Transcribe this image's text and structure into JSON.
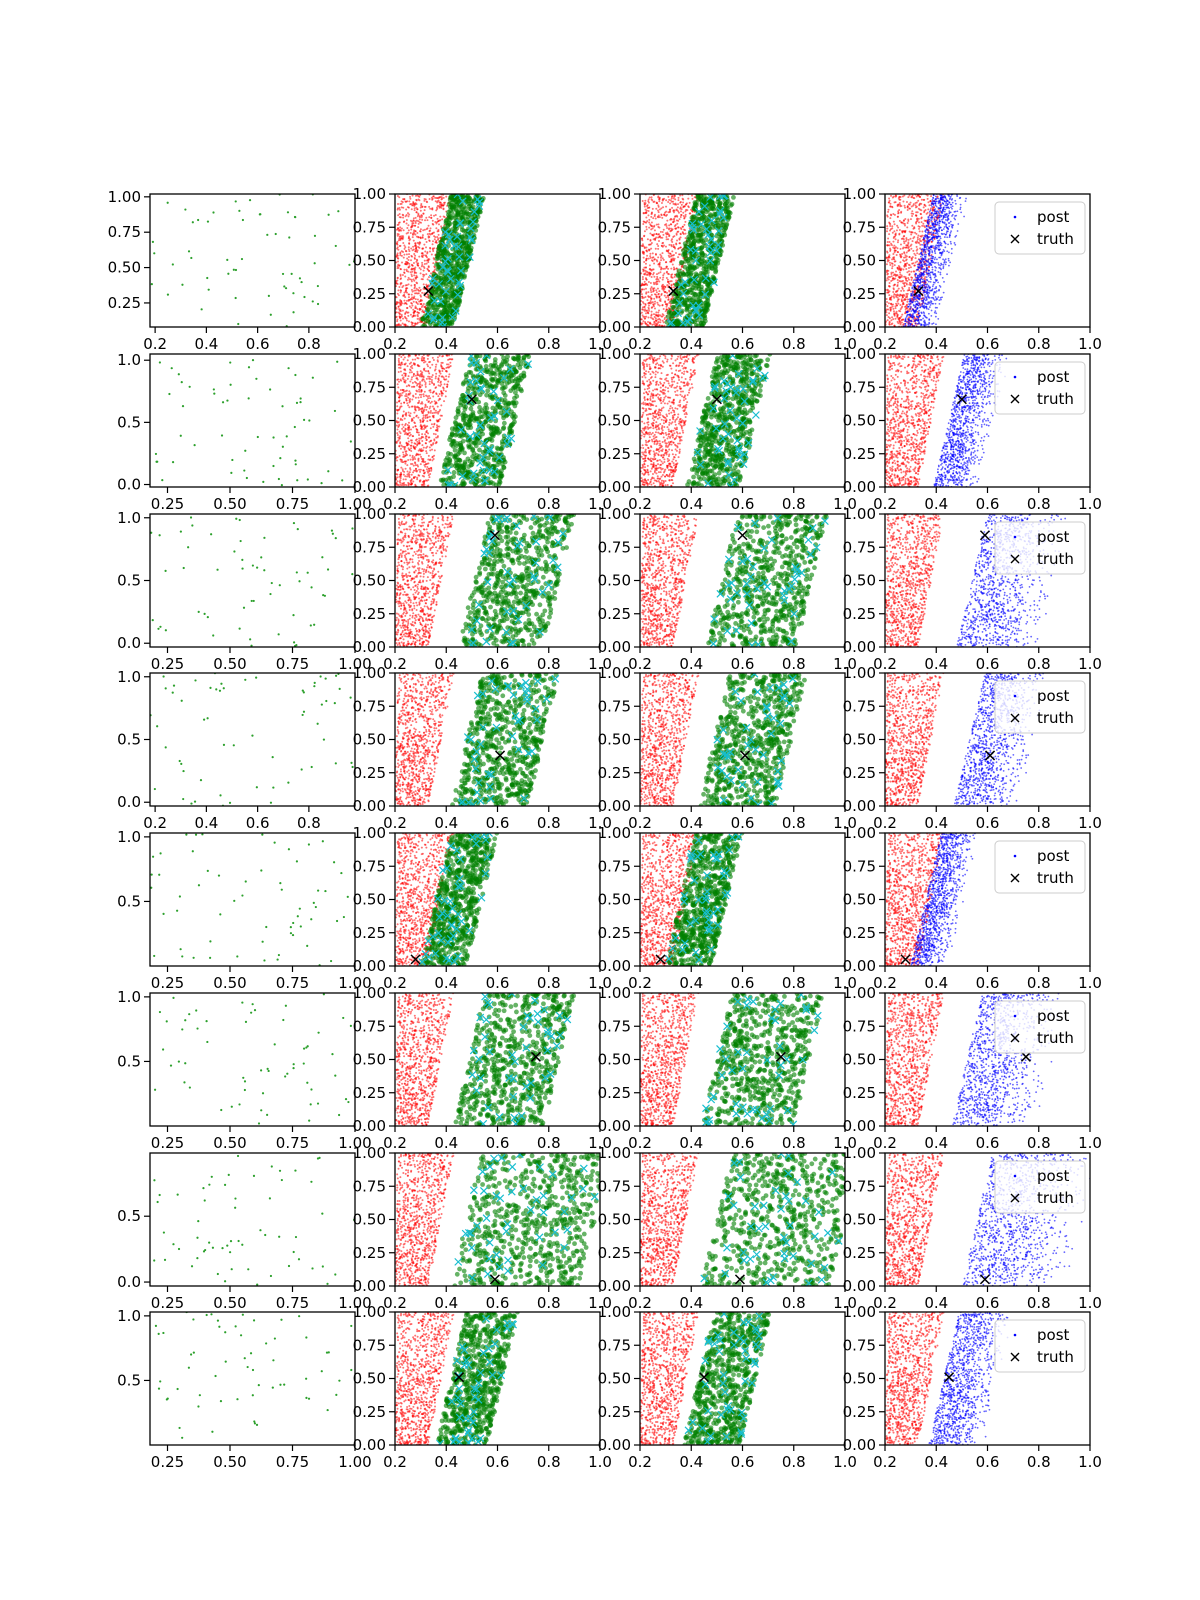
{
  "figure": {
    "legend": {
      "post_label": "post",
      "truth_label": "truth",
      "placement": "upper-right"
    },
    "colors": {
      "samples_green": "#2ca02c",
      "prior_red": "#ff0000",
      "cloud_green": "#008000",
      "accepted_cyan": "#17becf",
      "posterior_blue": "#0000ff",
      "truth_black": "#000000"
    }
  },
  "chart_data": [
    {
      "row": 0,
      "col": 0,
      "type": "scatter",
      "series": "samples",
      "xlim": [
        0.18,
        0.98
      ],
      "ylim": [
        0.08,
        1.02
      ],
      "xticks": [
        "0.2",
        "0.4",
        "0.6",
        "0.8"
      ],
      "yticks": [
        "0.25",
        "0.50",
        "0.75",
        "1.00"
      ],
      "xtick_vals": [
        0.2,
        0.4,
        0.6,
        0.8
      ],
      "ytick_vals": [
        0.25,
        0.5,
        0.75,
        1.0
      ]
    },
    {
      "row": 0,
      "col": 1,
      "type": "scatter",
      "series": "prior+cloud",
      "xlim": [
        0.2,
        1.0
      ],
      "ylim": [
        0,
        1
      ],
      "xticks": [
        "0.2",
        "0.4",
        "0.6",
        "0.8",
        "1.0"
      ],
      "yticks": [
        "0.00",
        "0.25",
        "0.50",
        "0.75",
        "1.00"
      ],
      "cloud": {
        "x0": 0.3,
        "w": 0.13
      },
      "truth": {
        "x": 0.33,
        "y": 0.27
      }
    },
    {
      "row": 0,
      "col": 2,
      "type": "scatter",
      "series": "prior+cloud",
      "xlim": [
        0.2,
        1.0
      ],
      "ylim": [
        0,
        1
      ],
      "xticks": [
        "0.2",
        "0.4",
        "0.6",
        "0.8",
        "1.0"
      ],
      "yticks": [
        "0.00",
        "0.25",
        "0.50",
        "0.75",
        "1.00"
      ],
      "cloud": {
        "x0": 0.3,
        "w": 0.15
      },
      "truth": {
        "x": 0.33,
        "y": 0.27
      }
    },
    {
      "row": 0,
      "col": 3,
      "type": "scatter",
      "series": "prior+posterior",
      "xlim": [
        0.2,
        1.0
      ],
      "ylim": [
        0,
        1
      ],
      "xticks": [
        "0.2",
        "0.4",
        "0.6",
        "0.8",
        "1.0"
      ],
      "yticks": [
        "0.00",
        "0.25",
        "0.50",
        "0.75",
        "1.00"
      ],
      "cloud": {
        "x0": 0.27,
        "w": 0.14
      },
      "truth": {
        "x": 0.33,
        "y": 0.27
      },
      "legend": true
    },
    {
      "row": 1,
      "col": 0,
      "type": "scatter",
      "series": "samples",
      "xlim": [
        0.18,
        1.0
      ],
      "ylim": [
        -0.02,
        1.05
      ],
      "xticks": [
        "0.25",
        "0.50",
        "0.75",
        "1.00"
      ],
      "yticks": [
        "0.0",
        "0.5",
        "1.0"
      ],
      "xtick_vals": [
        0.25,
        0.5,
        0.75,
        1.0
      ],
      "ytick_vals": [
        0,
        0.5,
        1.0
      ]
    },
    {
      "row": 1,
      "col": 1,
      "type": "scatter",
      "series": "prior+cloud",
      "xlim": [
        0.2,
        1.0
      ],
      "ylim": [
        0,
        1
      ],
      "xticks": [
        "0.2",
        "0.4",
        "0.6",
        "0.8",
        "1.0"
      ],
      "yticks": [
        "0.00",
        "0.25",
        "0.50",
        "0.75",
        "1.00"
      ],
      "cloud": {
        "x0": 0.37,
        "w": 0.24
      },
      "truth": {
        "x": 0.5,
        "y": 0.66
      }
    },
    {
      "row": 1,
      "col": 2,
      "type": "scatter",
      "series": "prior+cloud",
      "xlim": [
        0.2,
        1.0
      ],
      "ylim": [
        0,
        1
      ],
      "xticks": [
        "0.2",
        "0.4",
        "0.6",
        "0.8",
        "1.0"
      ],
      "yticks": [
        "0.00",
        "0.25",
        "0.50",
        "0.75",
        "1.00"
      ],
      "cloud": {
        "x0": 0.38,
        "w": 0.21
      },
      "truth": {
        "x": 0.5,
        "y": 0.66
      }
    },
    {
      "row": 1,
      "col": 3,
      "type": "scatter",
      "series": "prior+posterior",
      "xlim": [
        0.2,
        1.0
      ],
      "ylim": [
        0,
        1
      ],
      "xticks": [
        "0.2",
        "0.4",
        "0.6",
        "0.8",
        "1.0"
      ],
      "yticks": [
        "0.00",
        "0.25",
        "0.50",
        "0.75",
        "1.00"
      ],
      "cloud": {
        "x0": 0.39,
        "w": 0.18
      },
      "truth": {
        "x": 0.5,
        "y": 0.66
      },
      "legend": true
    },
    {
      "row": 2,
      "col": 0,
      "type": "scatter",
      "series": "samples",
      "xlim": [
        0.18,
        1.0
      ],
      "ylim": [
        -0.03,
        1.03
      ],
      "xticks": [
        "0.25",
        "0.50",
        "0.75",
        "1.00"
      ],
      "yticks": [
        "0.0",
        "0.5",
        "1.0"
      ],
      "xtick_vals": [
        0.25,
        0.5,
        0.75,
        1.0
      ],
      "ytick_vals": [
        0,
        0.5,
        1.0
      ]
    },
    {
      "row": 2,
      "col": 1,
      "type": "scatter",
      "series": "prior+cloud",
      "xlim": [
        0.2,
        1.0
      ],
      "ylim": [
        0,
        1
      ],
      "xticks": [
        "0.2",
        "0.4",
        "0.6",
        "0.8",
        "1.0"
      ],
      "yticks": [
        "0.00",
        "0.25",
        "0.50",
        "0.75",
        "1.00"
      ],
      "cloud": {
        "x0": 0.45,
        "w": 0.33
      },
      "truth": {
        "x": 0.59,
        "y": 0.84
      }
    },
    {
      "row": 2,
      "col": 2,
      "type": "scatter",
      "series": "prior+cloud",
      "xlim": [
        0.2,
        1.0
      ],
      "ylim": [
        0,
        1
      ],
      "xticks": [
        "0.2",
        "0.4",
        "0.6",
        "0.8",
        "1.0"
      ],
      "yticks": [
        "0.00",
        "0.25",
        "0.50",
        "0.75",
        "1.00"
      ],
      "cloud": {
        "x0": 0.46,
        "w": 0.35
      },
      "truth": {
        "x": 0.6,
        "y": 0.84
      }
    },
    {
      "row": 2,
      "col": 3,
      "type": "scatter",
      "series": "prior+posterior",
      "xlim": [
        0.2,
        1.0
      ],
      "ylim": [
        0,
        1
      ],
      "xticks": [
        "0.2",
        "0.4",
        "0.6",
        "0.8",
        "1.0"
      ],
      "yticks": [
        "0.00",
        "0.25",
        "0.50",
        "0.75",
        "1.00"
      ],
      "cloud": {
        "x0": 0.48,
        "w": 0.33
      },
      "truth": {
        "x": 0.59,
        "y": 0.84
      },
      "legend": true
    },
    {
      "row": 3,
      "col": 0,
      "type": "scatter",
      "series": "samples",
      "xlim": [
        0.18,
        0.98
      ],
      "ylim": [
        -0.03,
        1.03
      ],
      "xticks": [
        "0.2",
        "0.4",
        "0.6",
        "0.8"
      ],
      "yticks": [
        "0.0",
        "0.5",
        "1.0"
      ],
      "xtick_vals": [
        0.2,
        0.4,
        0.6,
        0.8
      ],
      "ytick_vals": [
        0,
        0.5,
        1.0
      ]
    },
    {
      "row": 3,
      "col": 1,
      "type": "scatter",
      "series": "prior+cloud",
      "xlim": [
        0.2,
        1.0
      ],
      "ylim": [
        0,
        1
      ],
      "xticks": [
        "0.2",
        "0.4",
        "0.6",
        "0.8",
        "1.0"
      ],
      "yticks": [
        "0.00",
        "0.25",
        "0.50",
        "0.75",
        "1.00"
      ],
      "cloud": {
        "x0": 0.42,
        "w": 0.3
      },
      "truth": {
        "x": 0.61,
        "y": 0.38
      }
    },
    {
      "row": 3,
      "col": 2,
      "type": "scatter",
      "series": "prior+cloud",
      "xlim": [
        0.2,
        1.0
      ],
      "ylim": [
        0,
        1
      ],
      "xticks": [
        "0.2",
        "0.4",
        "0.6",
        "0.8",
        "1.0"
      ],
      "yticks": [
        "0.00",
        "0.25",
        "0.50",
        "0.75",
        "1.00"
      ],
      "cloud": {
        "x0": 0.43,
        "w": 0.3
      },
      "truth": {
        "x": 0.61,
        "y": 0.38
      }
    },
    {
      "row": 3,
      "col": 3,
      "type": "scatter",
      "series": "prior+posterior",
      "xlim": [
        0.2,
        1.0
      ],
      "ylim": [
        0,
        1
      ],
      "xticks": [
        "0.2",
        "0.4",
        "0.6",
        "0.8",
        "1.0"
      ],
      "yticks": [
        "0.00",
        "0.25",
        "0.50",
        "0.75",
        "1.00"
      ],
      "cloud": {
        "x0": 0.47,
        "w": 0.26
      },
      "truth": {
        "x": 0.61,
        "y": 0.38
      },
      "legend": true
    },
    {
      "row": 4,
      "col": 0,
      "type": "scatter",
      "series": "samples",
      "xlim": [
        0.18,
        1.0
      ],
      "ylim": [
        0.0,
        1.03
      ],
      "xticks": [
        "0.25",
        "0.50",
        "0.75",
        "1.00"
      ],
      "yticks": [
        "0.5",
        "1.0"
      ],
      "xtick_vals": [
        0.25,
        0.5,
        0.75,
        1.0
      ],
      "ytick_vals": [
        0.5,
        1.0
      ]
    },
    {
      "row": 4,
      "col": 1,
      "type": "scatter",
      "series": "prior+cloud",
      "xlim": [
        0.2,
        1.0
      ],
      "ylim": [
        0,
        1
      ],
      "xticks": [
        "0.2",
        "0.4",
        "0.6",
        "0.8",
        "1.0"
      ],
      "yticks": [
        "0.00",
        "0.25",
        "0.50",
        "0.75",
        "1.00"
      ],
      "cloud": {
        "x0": 0.3,
        "w": 0.18
      },
      "truth": {
        "x": 0.28,
        "y": 0.05
      }
    },
    {
      "row": 4,
      "col": 2,
      "type": "scatter",
      "series": "prior+cloud",
      "xlim": [
        0.2,
        1.0
      ],
      "ylim": [
        0,
        1
      ],
      "xticks": [
        "0.2",
        "0.4",
        "0.6",
        "0.8",
        "1.0"
      ],
      "yticks": [
        "0.00",
        "0.25",
        "0.50",
        "0.75",
        "1.00"
      ],
      "cloud": {
        "x0": 0.3,
        "w": 0.18
      },
      "truth": {
        "x": 0.28,
        "y": 0.05
      }
    },
    {
      "row": 4,
      "col": 3,
      "type": "scatter",
      "series": "prior+posterior",
      "xlim": [
        0.2,
        1.0
      ],
      "ylim": [
        0,
        1
      ],
      "xticks": [
        "0.2",
        "0.4",
        "0.6",
        "0.8",
        "1.0"
      ],
      "yticks": [
        "0.00",
        "0.25",
        "0.50",
        "0.75",
        "1.00"
      ],
      "cloud": {
        "x0": 0.3,
        "w": 0.15
      },
      "truth": {
        "x": 0.28,
        "y": 0.05
      },
      "legend": true
    },
    {
      "row": 5,
      "col": 0,
      "type": "scatter",
      "series": "samples",
      "xlim": [
        0.18,
        1.0
      ],
      "ylim": [
        0.0,
        1.03
      ],
      "xticks": [
        "0.25",
        "0.50",
        "0.75",
        "1.00"
      ],
      "yticks": [
        "0.5",
        "1.0"
      ],
      "xtick_vals": [
        0.25,
        0.5,
        0.75,
        1.0
      ],
      "ytick_vals": [
        0.5,
        1.0
      ]
    },
    {
      "row": 5,
      "col": 1,
      "type": "scatter",
      "series": "prior+cloud",
      "xlim": [
        0.2,
        1.0
      ],
      "ylim": [
        0,
        1
      ],
      "xticks": [
        "0.2",
        "0.4",
        "0.6",
        "0.8",
        "1.0"
      ],
      "yticks": [
        "0.00",
        "0.25",
        "0.50",
        "0.75",
        "1.00"
      ],
      "cloud": {
        "x0": 0.43,
        "w": 0.35
      },
      "truth": {
        "x": 0.75,
        "y": 0.52
      }
    },
    {
      "row": 5,
      "col": 2,
      "type": "scatter",
      "series": "prior+cloud",
      "xlim": [
        0.2,
        1.0
      ],
      "ylim": [
        0,
        1
      ],
      "xticks": [
        "0.2",
        "0.4",
        "0.6",
        "0.8",
        "1.0"
      ],
      "yticks": [
        "0.00",
        "0.25",
        "0.50",
        "0.75",
        "1.00"
      ],
      "cloud": {
        "x0": 0.44,
        "w": 0.36
      },
      "truth": {
        "x": 0.75,
        "y": 0.52
      }
    },
    {
      "row": 5,
      "col": 3,
      "type": "scatter",
      "series": "prior+posterior",
      "xlim": [
        0.2,
        1.0
      ],
      "ylim": [
        0,
        1
      ],
      "xticks": [
        "0.2",
        "0.4",
        "0.6",
        "0.8",
        "1.0"
      ],
      "yticks": [
        "0.00",
        "0.25",
        "0.50",
        "0.75",
        "1.00"
      ],
      "cloud": {
        "x0": 0.46,
        "w": 0.34
      },
      "truth": {
        "x": 0.75,
        "y": 0.52
      },
      "legend": true
    },
    {
      "row": 6,
      "col": 0,
      "type": "scatter",
      "series": "samples",
      "xlim": [
        0.18,
        1.0
      ],
      "ylim": [
        -0.03,
        0.98
      ],
      "xticks": [
        "0.25",
        "0.50",
        "0.75",
        "1.00"
      ],
      "yticks": [
        "0.0",
        "0.5"
      ],
      "xtick_vals": [
        0.25,
        0.5,
        0.75,
        1.0
      ],
      "ytick_vals": [
        0,
        0.5
      ]
    },
    {
      "row": 6,
      "col": 1,
      "type": "scatter",
      "series": "prior+cloud",
      "xlim": [
        0.2,
        1.0
      ],
      "ylim": [
        0,
        1
      ],
      "xticks": [
        "0.2",
        "0.4",
        "0.6",
        "0.8",
        "1.0"
      ],
      "yticks": [
        "0.00",
        "0.25",
        "0.50",
        "0.75",
        "1.00"
      ],
      "cloud": {
        "x0": 0.42,
        "w": 0.5
      },
      "truth": {
        "x": 0.59,
        "y": 0.05
      }
    },
    {
      "row": 6,
      "col": 2,
      "type": "scatter",
      "series": "prior+cloud",
      "xlim": [
        0.2,
        1.0
      ],
      "ylim": [
        0,
        1
      ],
      "xticks": [
        "0.2",
        "0.4",
        "0.6",
        "0.8",
        "1.0"
      ],
      "yticks": [
        "0.00",
        "0.25",
        "0.50",
        "0.75",
        "1.00"
      ],
      "cloud": {
        "x0": 0.44,
        "w": 0.5
      },
      "truth": {
        "x": 0.59,
        "y": 0.05
      }
    },
    {
      "row": 6,
      "col": 3,
      "type": "scatter",
      "series": "prior+posterior",
      "xlim": [
        0.2,
        1.0
      ],
      "ylim": [
        0,
        1
      ],
      "xticks": [
        "0.2",
        "0.4",
        "0.6",
        "0.8",
        "1.0"
      ],
      "yticks": [
        "0.00",
        "0.25",
        "0.50",
        "0.75",
        "1.00"
      ],
      "cloud": {
        "x0": 0.5,
        "w": 0.42
      },
      "truth": {
        "x": 0.59,
        "y": 0.05
      },
      "legend": true
    },
    {
      "row": 7,
      "col": 0,
      "type": "scatter",
      "series": "samples",
      "xlim": [
        0.18,
        1.0
      ],
      "ylim": [
        0.0,
        1.03
      ],
      "xticks": [
        "0.25",
        "0.50",
        "0.75",
        "1.00"
      ],
      "yticks": [
        "0.5",
        "1.0"
      ],
      "xtick_vals": [
        0.25,
        0.5,
        0.75,
        1.0
      ],
      "ytick_vals": [
        0.5,
        1.0
      ]
    },
    {
      "row": 7,
      "col": 1,
      "type": "scatter",
      "series": "prior+cloud",
      "xlim": [
        0.2,
        1.0
      ],
      "ylim": [
        0,
        1
      ],
      "xticks": [
        "0.2",
        "0.4",
        "0.6",
        "0.8",
        "1.0"
      ],
      "yticks": [
        "0.00",
        "0.25",
        "0.50",
        "0.75",
        "1.00"
      ],
      "cloud": {
        "x0": 0.36,
        "w": 0.2
      },
      "truth": {
        "x": 0.45,
        "y": 0.51
      }
    },
    {
      "row": 7,
      "col": 2,
      "type": "scatter",
      "series": "prior+cloud",
      "xlim": [
        0.2,
        1.0
      ],
      "ylim": [
        0,
        1
      ],
      "xticks": [
        "0.2",
        "0.4",
        "0.6",
        "0.8",
        "1.0"
      ],
      "yticks": [
        "0.00",
        "0.25",
        "0.50",
        "0.75",
        "1.00"
      ],
      "cloud": {
        "x0": 0.37,
        "w": 0.22
      },
      "truth": {
        "x": 0.45,
        "y": 0.51
      }
    },
    {
      "row": 7,
      "col": 3,
      "type": "scatter",
      "series": "prior+posterior",
      "xlim": [
        0.2,
        1.0
      ],
      "ylim": [
        0,
        1
      ],
      "xticks": [
        "0.2",
        "0.4",
        "0.6",
        "0.8",
        "1.0"
      ],
      "yticks": [
        "0.00",
        "0.25",
        "0.50",
        "0.75",
        "1.00"
      ],
      "cloud": {
        "x0": 0.37,
        "w": 0.22
      },
      "truth": {
        "x": 0.45,
        "y": 0.51
      },
      "legend": true
    }
  ]
}
